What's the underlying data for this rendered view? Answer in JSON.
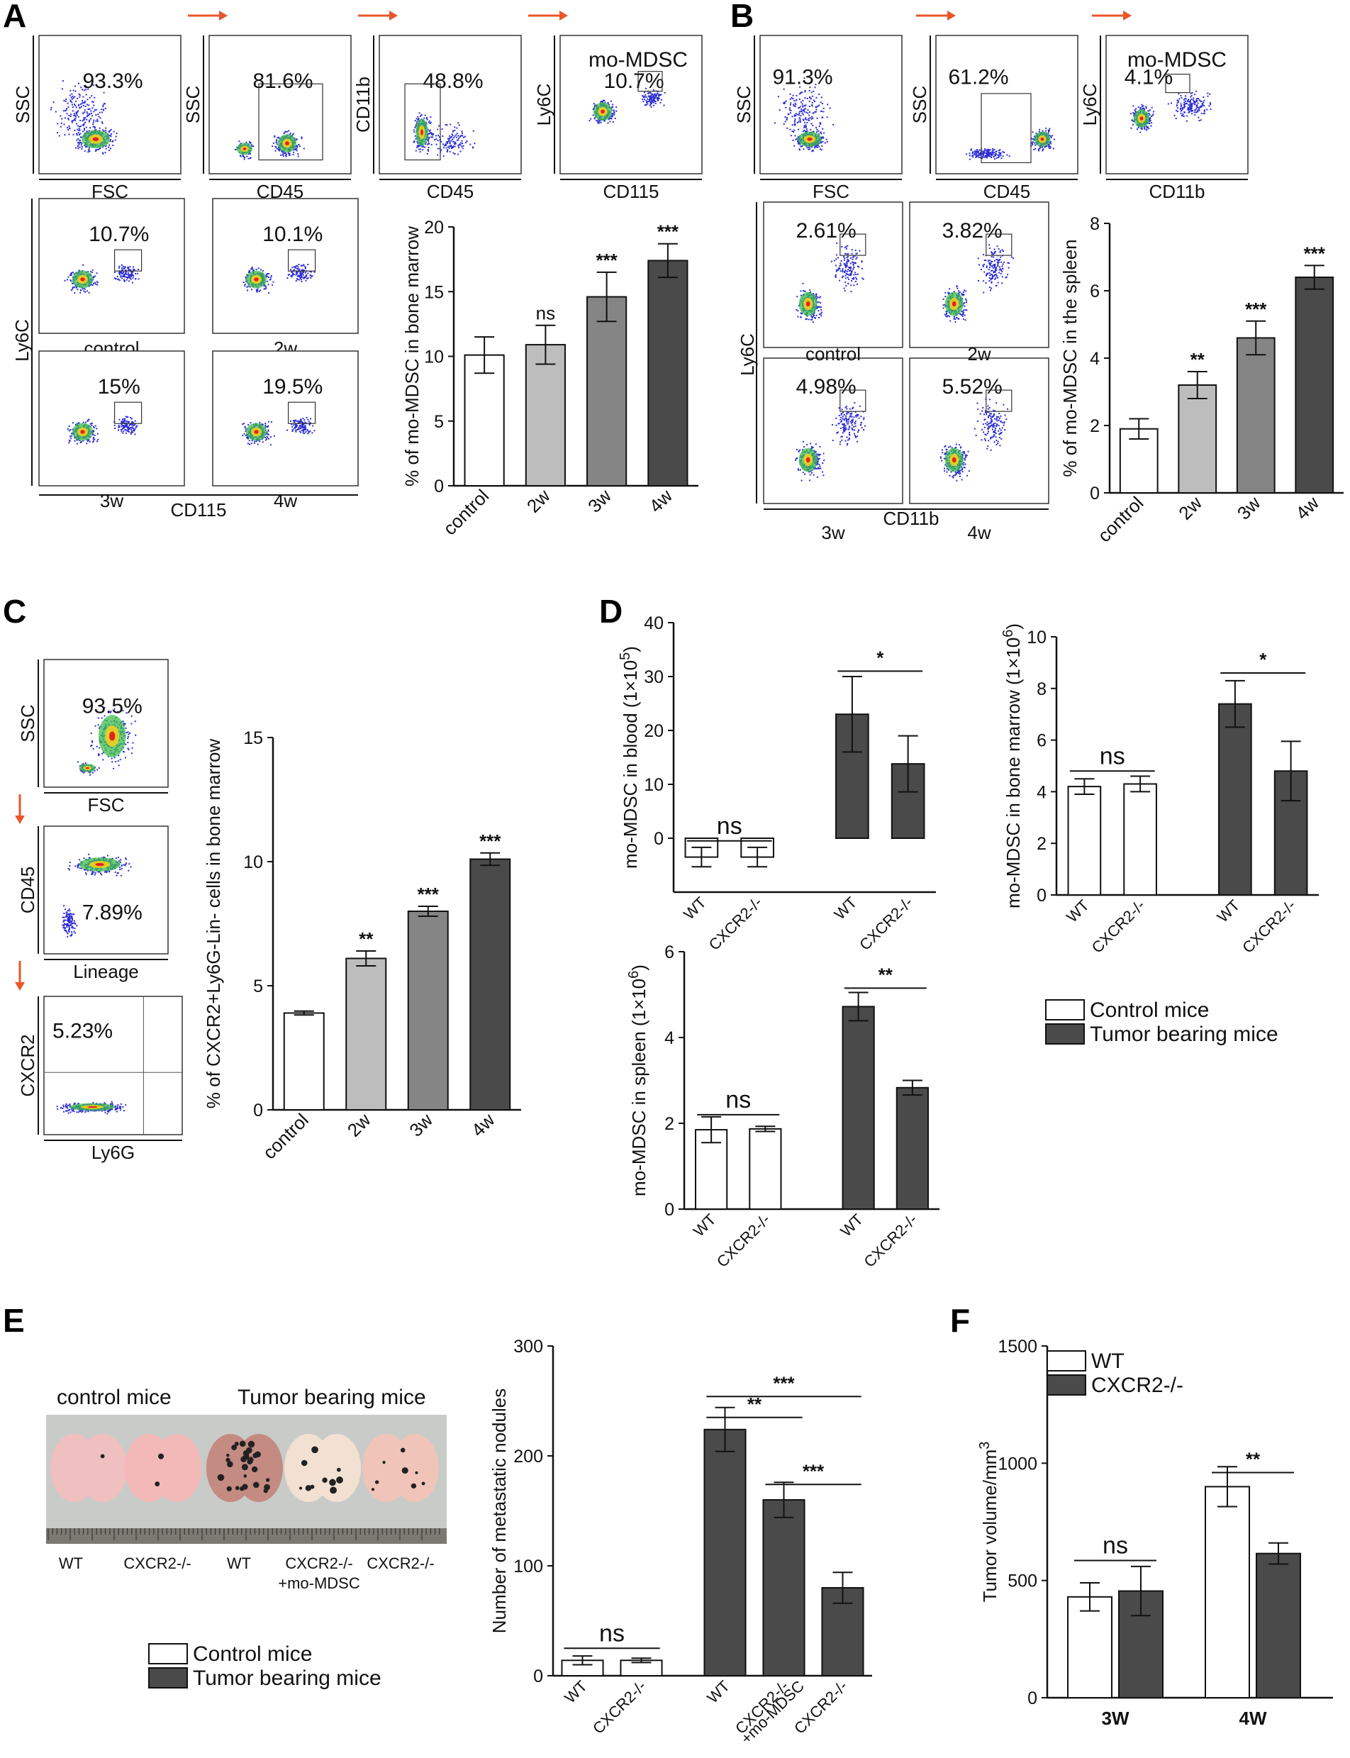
{
  "panels": {
    "A": "A",
    "B": "B",
    "C": "C",
    "D": "D",
    "E": "E",
    "F": "F"
  },
  "colors": {
    "white": "#ffffff",
    "light_gray": "#bdbdbd",
    "mid_gray": "#858585",
    "dark_gray": "#4a4a4a",
    "arrow": "#e8562a",
    "dot_blue": "#2b2bd6",
    "lung_pink": "#e8a0a0"
  },
  "flow_A": {
    "top_row": [
      {
        "y_label": "SSC",
        "x_label": "FSC",
        "pct": "93.3%"
      },
      {
        "y_label": "SSC",
        "x_label": "CD45",
        "pct": "81.6%"
      },
      {
        "y_label": "CD11b",
        "x_label": "CD45",
        "pct": "48.8%"
      },
      {
        "y_label": "Ly6C",
        "x_label": "CD115",
        "pct": "10.7%",
        "gate": "mo-MDSC"
      }
    ],
    "grid": [
      {
        "label": "control",
        "pct": "10.7%"
      },
      {
        "label": "2w",
        "pct": "10.1%"
      },
      {
        "label": "3w",
        "pct": "15%"
      },
      {
        "label": "4w",
        "pct": "19.5%"
      }
    ],
    "grid_y_label": "Ly6C",
    "grid_x_label": "CD115"
  },
  "flow_B": {
    "top_row": [
      {
        "y_label": "SSC",
        "x_label": "FSC",
        "pct": "91.3%"
      },
      {
        "y_label": "SSC",
        "x_label": "CD45",
        "pct": "61.2%"
      },
      {
        "y_label": "Ly6C",
        "x_label": "CD11b",
        "pct": "4.1%",
        "gate": "mo-MDSC"
      }
    ],
    "grid": [
      {
        "label": "control",
        "pct": "2.61%"
      },
      {
        "label": "2w",
        "pct": "3.82%"
      },
      {
        "label": "3w",
        "pct": "4.98%"
      },
      {
        "label": "4w",
        "pct": "5.52%"
      }
    ],
    "grid_y_label": "Ly6C",
    "grid_x_label": "CD11b"
  },
  "flow_C": {
    "plots": [
      {
        "y_label": "SSC",
        "x_label": "FSC",
        "pct": "93.5%"
      },
      {
        "y_label": "CD45",
        "x_label": "Lineage",
        "pct": "7.89%"
      },
      {
        "y_label": "CXCR2",
        "x_label": "Ly6G",
        "pct": "5.23%"
      }
    ]
  },
  "chart_data": [
    {
      "id": "A_bar",
      "type": "bar",
      "ylabel": "% of mo-MDSC in bone marrow",
      "categories": [
        "control",
        "2w",
        "3w",
        "4w"
      ],
      "values": [
        10.1,
        10.9,
        14.6,
        17.4
      ],
      "errors": [
        1.4,
        1.5,
        1.9,
        1.3
      ],
      "sig": [
        "",
        "ns",
        "***",
        "***"
      ],
      "ylim": [
        0,
        20
      ],
      "ticks": [
        "0",
        "5",
        "10",
        "15",
        "20"
      ],
      "tick_values": [
        0,
        5,
        10,
        15,
        20
      ],
      "fills": [
        "#ffffff",
        "#bdbdbd",
        "#858585",
        "#4a4a4a"
      ]
    },
    {
      "id": "B_bar",
      "type": "bar",
      "ylabel": "% of mo-MDSC in the spleen",
      "categories": [
        "control",
        "2w",
        "3w",
        "4w"
      ],
      "values": [
        1.9,
        3.2,
        4.6,
        6.4
      ],
      "errors": [
        0.3,
        0.4,
        0.5,
        0.35
      ],
      "sig": [
        "",
        "**",
        "***",
        "***"
      ],
      "ylim": [
        0,
        8
      ],
      "ticks": [
        "0",
        "2",
        "4",
        "6",
        "8"
      ],
      "tick_values": [
        0,
        2,
        4,
        6,
        8
      ],
      "fills": [
        "#ffffff",
        "#bdbdbd",
        "#858585",
        "#4a4a4a"
      ]
    },
    {
      "id": "C_bar",
      "type": "bar",
      "ylabel": "% of CXCR2+Ly6G-Lin- cells in bone marrow",
      "categories": [
        "control",
        "2w",
        "3w",
        "4w"
      ],
      "values": [
        3.9,
        6.1,
        8.0,
        10.1
      ],
      "errors": [
        0.08,
        0.3,
        0.2,
        0.25
      ],
      "sig": [
        "",
        "**",
        "***",
        "***"
      ],
      "ylim": [
        0,
        15
      ],
      "ticks": [
        "0",
        "5",
        "10",
        "15"
      ],
      "tick_values": [
        0,
        5,
        10,
        15
      ],
      "fills": [
        "#ffffff",
        "#bdbdbd",
        "#858585",
        "#4a4a4a"
      ]
    },
    {
      "id": "D_blood",
      "type": "bar",
      "ylabel": "mo-MDSC in blood (1×10",
      "ylabel_exp": "5",
      "ylabel_tail": ")",
      "categories": [
        "WT",
        "CXCR2-/-",
        "WT",
        "CXCR2-/-"
      ],
      "values": [
        -3.5,
        -3.5,
        23.0,
        13.8
      ],
      "errors": [
        1.8,
        1.8,
        7.0,
        5.2
      ],
      "ylim": [
        -10,
        40
      ],
      "ticks": [
        "0",
        "10",
        "20",
        "30",
        "40"
      ],
      "tick_values": [
        0,
        10,
        20,
        30,
        40
      ],
      "fills": [
        "#ffffff",
        "#ffffff",
        "#4a4a4a",
        "#4a4a4a"
      ],
      "brackets": [
        {
          "from": 0,
          "to": 1,
          "label": "ns"
        },
        {
          "from": 2,
          "to": 3,
          "label": "*"
        }
      ]
    },
    {
      "id": "D_bm",
      "type": "bar",
      "ylabel": "mo-MDSC in bone marrow (1×10",
      "ylabel_exp": "6",
      "ylabel_tail": ")",
      "categories": [
        "WT",
        "CXCR2-/-",
        "WT",
        "CXCR2-/-"
      ],
      "values": [
        4.2,
        4.3,
        7.4,
        4.8
      ],
      "errors": [
        0.3,
        0.3,
        0.9,
        1.15
      ],
      "ylim": [
        0,
        10
      ],
      "ticks": [
        "0",
        "2",
        "4",
        "6",
        "8",
        "10"
      ],
      "tick_values": [
        0,
        2,
        4,
        6,
        8,
        10
      ],
      "fills": [
        "#ffffff",
        "#ffffff",
        "#4a4a4a",
        "#4a4a4a"
      ],
      "brackets": [
        {
          "from": 0,
          "to": 1,
          "label": "ns"
        },
        {
          "from": 2,
          "to": 3,
          "label": "*"
        }
      ]
    },
    {
      "id": "D_spleen",
      "type": "bar",
      "ylabel": "mo-MDSC in spleen (1×10",
      "ylabel_exp": "6",
      "ylabel_tail": ")",
      "categories": [
        "WT",
        "CXCR2-/-",
        "WT",
        "CXCR2-/-"
      ],
      "values": [
        1.85,
        1.87,
        4.72,
        2.83
      ],
      "errors": [
        0.3,
        0.06,
        0.33,
        0.17
      ],
      "ylim": [
        0,
        6
      ],
      "ticks": [
        "0",
        "2",
        "4",
        "6"
      ],
      "tick_values": [
        0,
        2,
        4,
        6
      ],
      "fills": [
        "#ffffff",
        "#ffffff",
        "#4a4a4a",
        "#4a4a4a"
      ],
      "brackets": [
        {
          "from": 0,
          "to": 1,
          "label": "ns"
        },
        {
          "from": 2,
          "to": 3,
          "label": "**"
        }
      ]
    },
    {
      "id": "E_bar",
      "type": "bar",
      "ylabel": "Number of metastatic nodules",
      "categories": [
        "WT",
        "CXCR2-/-",
        "WT",
        "CXCR2-/-\n+mo-MDSC",
        "CXCR2-/-"
      ],
      "values": [
        14,
        14,
        224,
        160,
        80
      ],
      "errors": [
        4,
        2,
        20,
        16,
        14
      ],
      "ylim": [
        0,
        300
      ],
      "ticks": [
        "0",
        "100",
        "200",
        "300"
      ],
      "tick_values": [
        0,
        100,
        200,
        300
      ],
      "fills": [
        "#ffffff",
        "#ffffff",
        "#4a4a4a",
        "#4a4a4a",
        "#4a4a4a"
      ],
      "brackets": [
        {
          "from": 0,
          "to": 1,
          "label": "ns"
        },
        {
          "from": 2,
          "to": 3,
          "label": "**"
        },
        {
          "from": 2,
          "to": 4,
          "label": "***"
        },
        {
          "from": 3,
          "to": 4,
          "label": "***"
        }
      ]
    },
    {
      "id": "F_bar",
      "type": "bar",
      "ylabel": "Tumor volume/mm",
      "ylabel_exp": "3",
      "ylabel_tail": "",
      "categories": [
        "3W",
        "4W"
      ],
      "series": [
        {
          "name": "WT",
          "values": [
            430,
            900
          ],
          "errors": [
            60,
            85
          ],
          "fill": "#ffffff"
        },
        {
          "name": "CXCR2-/-",
          "values": [
            455,
            615
          ],
          "errors": [
            105,
            45
          ],
          "fill": "#4a4a4a"
        }
      ],
      "ylim": [
        0,
        1500
      ],
      "ticks": [
        "0",
        "500",
        "1000",
        "1500"
      ],
      "tick_values": [
        0,
        500,
        1000,
        1500
      ],
      "brackets": [
        {
          "group": 0,
          "label": "ns"
        },
        {
          "group": 1,
          "label": "**"
        }
      ]
    }
  ],
  "legend_D": [
    "Control mice",
    "Tumor bearing mice"
  ],
  "legend_E": [
    "Control mice",
    "Tumor bearing mice"
  ],
  "legend_F": [
    "WT",
    "CXCR2-/-"
  ],
  "photo_E": {
    "header_left": "control mice",
    "header_right": "Tumor bearing mice",
    "labels": [
      "WT",
      "CXCR2-/-",
      "WT",
      "CXCR2-/-\n+mo-MDSC",
      "CXCR2-/-"
    ]
  }
}
